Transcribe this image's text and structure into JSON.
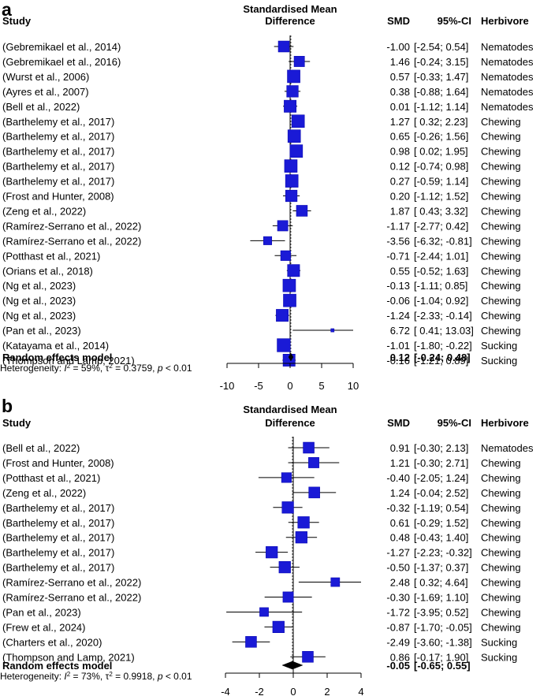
{
  "chart_data": [
    {
      "type": "forest",
      "panel_label": "a",
      "headers": {
        "study": "Study",
        "effect_line1": "Standardised Mean",
        "effect_line2": "Difference",
        "smd": "SMD",
        "ci": "95%-CI",
        "group": "Herbivore"
      },
      "xlim": [
        -10,
        10
      ],
      "xticks": [
        -10,
        -5,
        0,
        5,
        10
      ],
      "xtick_labels": [
        "-10",
        "-5",
        "0",
        "5",
        "10"
      ],
      "rows": [
        {
          "study": "(Gebremikael et al., 2014)",
          "smd": -1.0,
          "lower": -2.54,
          "upper": 0.54,
          "smd_text": "-1.00",
          "ci_text": "[-2.54; 0.54]",
          "group": "Nematodes",
          "weight": 1.0
        },
        {
          "study": "(Gebremikael et al., 2016)",
          "smd": 1.46,
          "lower": -0.24,
          "upper": 3.15,
          "smd_text": "1.46",
          "ci_text": "[-0.24; 3.15]",
          "group": "Nematodes",
          "weight": 0.95
        },
        {
          "study": "(Wurst et al., 2006)",
          "smd": 0.57,
          "lower": -0.33,
          "upper": 1.47,
          "smd_text": "0.57",
          "ci_text": "[-0.33; 1.47]",
          "group": "Nematodes",
          "weight": 1.15
        },
        {
          "study": "(Ayres et al., 2007)",
          "smd": 0.38,
          "lower": -0.88,
          "upper": 1.64,
          "smd_text": "0.38",
          "ci_text": "[-0.88; 1.64]",
          "group": "Nematodes",
          "weight": 1.05
        },
        {
          "study": "(Bell et al., 2022)",
          "smd": 0.01,
          "lower": -1.12,
          "upper": 1.14,
          "smd_text": "0.01",
          "ci_text": "[-1.12; 1.14]",
          "group": "Nematodes",
          "weight": 1.1
        },
        {
          "study": "(Barthelemy et al., 2017)",
          "smd": 1.27,
          "lower": 0.32,
          "upper": 2.23,
          "smd_text": "1.27",
          "ci_text": "[ 0.32; 2.23]",
          "group": "Chewing",
          "weight": 1.15
        },
        {
          "study": "(Barthelemy et al., 2017)",
          "smd": 0.65,
          "lower": -0.26,
          "upper": 1.56,
          "smd_text": "0.65",
          "ci_text": "[-0.26; 1.56]",
          "group": "Chewing",
          "weight": 1.15
        },
        {
          "study": "(Barthelemy et al., 2017)",
          "smd": 0.98,
          "lower": 0.02,
          "upper": 1.95,
          "smd_text": "0.98",
          "ci_text": "[ 0.02; 1.95]",
          "group": "Chewing",
          "weight": 1.15
        },
        {
          "study": "(Barthelemy et al., 2017)",
          "smd": 0.12,
          "lower": -0.74,
          "upper": 0.98,
          "smd_text": "0.12",
          "ci_text": "[-0.74; 0.98]",
          "group": "Chewing",
          "weight": 1.15
        },
        {
          "study": "(Barthelemy et al., 2017)",
          "smd": 0.27,
          "lower": -0.59,
          "upper": 1.14,
          "smd_text": "0.27",
          "ci_text": "[-0.59; 1.14]",
          "group": "Chewing",
          "weight": 1.15
        },
        {
          "study": "(Frost and Hunter, 2008)",
          "smd": 0.2,
          "lower": -1.12,
          "upper": 1.52,
          "smd_text": "0.20",
          "ci_text": "[-1.12; 1.52]",
          "group": "Chewing",
          "weight": 1.05
        },
        {
          "study": "(Zeng et al., 2022)",
          "smd": 1.87,
          "lower": 0.43,
          "upper": 3.32,
          "smd_text": "1.87",
          "ci_text": "[ 0.43; 3.32]",
          "group": "Chewing",
          "weight": 1.0
        },
        {
          "study": "(Ramírez-Serrano et al., 2022)",
          "smd": -1.17,
          "lower": -2.77,
          "upper": 0.42,
          "smd_text": "-1.17",
          "ci_text": "[-2.77; 0.42]",
          "group": "Chewing",
          "weight": 0.95
        },
        {
          "study": "(Ramírez-Serrano et al., 2022)",
          "smd": -3.56,
          "lower": -6.32,
          "upper": -0.81,
          "smd_text": "-3.56",
          "ci_text": "[-6.32; -0.81]",
          "group": "Chewing",
          "weight": 0.75
        },
        {
          "study": "(Potthast et al., 2021)",
          "smd": -0.71,
          "lower": -2.44,
          "upper": 1.01,
          "smd_text": "-0.71",
          "ci_text": "[-2.44; 1.01]",
          "group": "Chewing",
          "weight": 0.9
        },
        {
          "study": "(Orians et al., 2018)",
          "smd": 0.55,
          "lower": -0.52,
          "upper": 1.63,
          "smd_text": "0.55",
          "ci_text": "[-0.52; 1.63]",
          "group": "Chewing",
          "weight": 1.1
        },
        {
          "study": "(Ng et al., 2023)",
          "smd": -0.13,
          "lower": -1.11,
          "upper": 0.85,
          "smd_text": "-0.13",
          "ci_text": "[-1.11; 0.85]",
          "group": "Chewing",
          "weight": 1.15
        },
        {
          "study": "(Ng et al., 2023)",
          "smd": -0.06,
          "lower": -1.04,
          "upper": 0.92,
          "smd_text": "-0.06",
          "ci_text": "[-1.04; 0.92]",
          "group": "Chewing",
          "weight": 1.15
        },
        {
          "study": "(Ng et al., 2023)",
          "smd": -1.24,
          "lower": -2.33,
          "upper": -0.14,
          "smd_text": "-1.24",
          "ci_text": "[-2.33; -0.14]",
          "group": "Chewing",
          "weight": 1.1
        },
        {
          "study": "(Pan et al., 2023)",
          "smd": 6.72,
          "lower": 0.41,
          "upper": 13.03,
          "smd_text": "6.72",
          "ci_text": "[ 0.41; 13.03]",
          "group": "Chewing",
          "weight": 0.3
        },
        {
          "study": "(Katayama et al., 2014)",
          "smd": -1.01,
          "lower": -1.8,
          "upper": -0.22,
          "smd_text": "-1.01",
          "ci_text": "[-1.80; -0.22]",
          "group": "Sucking",
          "weight": 1.2
        },
        {
          "study": "(Thompson and Lamp, 2021)",
          "smd": -0.16,
          "lower": -1.21,
          "upper": 0.89,
          "smd_text": "-0.16",
          "ci_text": "[-1.21; 0.89]",
          "group": "Sucking",
          "weight": 1.1
        }
      ],
      "summary": {
        "label": "Random effects model",
        "smd": 0.12,
        "lower": -0.24,
        "upper": 0.48,
        "smd_text": "0.12",
        "ci_text": "[-0.24; 0.48]"
      },
      "heterogeneity": {
        "prefix": "Heterogeneity: ",
        "i2_symbol": "I",
        "i2_text": " = 59%, ",
        "tau2_symbol": "τ",
        "tau2_text": " = 0.3759, ",
        "p_symbol": "p",
        "p_text": " < 0.01"
      }
    },
    {
      "type": "forest",
      "panel_label": "b",
      "headers": {
        "study": "Study",
        "effect_line1": "Standardised Mean",
        "effect_line2": "Difference",
        "smd": "SMD",
        "ci": "95%-CI",
        "group": "Herbivore"
      },
      "xlim": [
        -4,
        4
      ],
      "xticks": [
        -4,
        -2,
        0,
        2,
        4
      ],
      "xtick_labels": [
        "-4",
        "-2",
        "0",
        "2",
        "4"
      ],
      "rows": [
        {
          "study": "(Bell et al., 2022)",
          "smd": 0.91,
          "lower": -0.3,
          "upper": 2.13,
          "smd_text": "0.91",
          "ci_text": "[-0.30; 2.13]",
          "group": "Nematodes",
          "weight": 1.0
        },
        {
          "study": "(Frost and Hunter, 2008)",
          "smd": 1.21,
          "lower": -0.3,
          "upper": 2.71,
          "smd_text": "1.21",
          "ci_text": "[-0.30; 2.71]",
          "group": "Chewing",
          "weight": 0.95
        },
        {
          "study": "(Potthast et al., 2021)",
          "smd": -0.4,
          "lower": -2.05,
          "upper": 1.24,
          "smd_text": "-0.40",
          "ci_text": "[-2.05; 1.24]",
          "group": "Chewing",
          "weight": 0.9
        },
        {
          "study": "(Zeng et al., 2022)",
          "smd": 1.24,
          "lower": -0.04,
          "upper": 2.52,
          "smd_text": "1.24",
          "ci_text": "[-0.04; 2.52]",
          "group": "Chewing",
          "weight": 1.0
        },
        {
          "study": "(Barthelemy et al., 2017)",
          "smd": -0.32,
          "lower": -1.19,
          "upper": 0.54,
          "smd_text": "-0.32",
          "ci_text": "[-1.19; 0.54]",
          "group": "Chewing",
          "weight": 1.05
        },
        {
          "study": "(Barthelemy et al., 2017)",
          "smd": 0.61,
          "lower": -0.29,
          "upper": 1.52,
          "smd_text": "0.61",
          "ci_text": "[-0.29; 1.52]",
          "group": "Chewing",
          "weight": 1.05
        },
        {
          "study": "(Barthelemy et al., 2017)",
          "smd": 0.48,
          "lower": -0.43,
          "upper": 1.4,
          "smd_text": "0.48",
          "ci_text": "[-0.43; 1.40]",
          "group": "Chewing",
          "weight": 1.05
        },
        {
          "study": "(Barthelemy et al., 2017)",
          "smd": -1.27,
          "lower": -2.23,
          "upper": -0.32,
          "smd_text": "-1.27",
          "ci_text": "[-2.23; -0.32]",
          "group": "Chewing",
          "weight": 1.05
        },
        {
          "study": "(Barthelemy et al., 2017)",
          "smd": -0.5,
          "lower": -1.37,
          "upper": 0.37,
          "smd_text": "-0.50",
          "ci_text": "[-1.37; 0.37]",
          "group": "Chewing",
          "weight": 1.05
        },
        {
          "study": "(Ramírez-Serrano et al., 2022)",
          "smd": 2.48,
          "lower": 0.32,
          "upper": 4.64,
          "smd_text": "2.48",
          "ci_text": "[ 0.32; 4.64]",
          "group": "Chewing",
          "weight": 0.8
        },
        {
          "study": "(Ramírez-Serrano et al., 2022)",
          "smd": -0.3,
          "lower": -1.69,
          "upper": 1.1,
          "smd_text": "-0.30",
          "ci_text": "[-1.69; 1.10]",
          "group": "Chewing",
          "weight": 0.95
        },
        {
          "study": "(Pan et al., 2023)",
          "smd": -1.72,
          "lower": -3.95,
          "upper": 0.52,
          "smd_text": "-1.72",
          "ci_text": "[-3.95; 0.52]",
          "group": "Chewing",
          "weight": 0.8
        },
        {
          "study": "(Frew et al., 2024)",
          "smd": -0.87,
          "lower": -1.7,
          "upper": -0.05,
          "smd_text": "-0.87",
          "ci_text": "[-1.70; -0.05]",
          "group": "Chewing",
          "weight": 1.05
        },
        {
          "study": "(Charters et al., 2020)",
          "smd": -2.49,
          "lower": -3.6,
          "upper": -1.38,
          "smd_text": "-2.49",
          "ci_text": "[-3.60; -1.38]",
          "group": "Sucking",
          "weight": 1.0
        },
        {
          "study": "(Thompson and Lamp, 2021)",
          "smd": 0.86,
          "lower": -0.17,
          "upper": 1.9,
          "smd_text": "0.86",
          "ci_text": "[-0.17; 1.90]",
          "group": "Sucking",
          "weight": 1.0
        }
      ],
      "summary": {
        "label": "Random effects model",
        "smd": -0.05,
        "lower": -0.65,
        "upper": 0.55,
        "smd_text": "-0.05",
        "ci_text": "[-0.65; 0.55]"
      },
      "heterogeneity": {
        "prefix": "Heterogeneity: ",
        "i2_symbol": "I",
        "i2_text": " = 73%, ",
        "tau2_symbol": "τ",
        "tau2_text": " = 0.9918, ",
        "p_symbol": "p",
        "p_text": " < 0.01"
      }
    }
  ],
  "colors": {
    "square": "#1a1ad6",
    "square_stroke": "#0000aa",
    "lines": "#000000",
    "dashed": "#555555"
  }
}
